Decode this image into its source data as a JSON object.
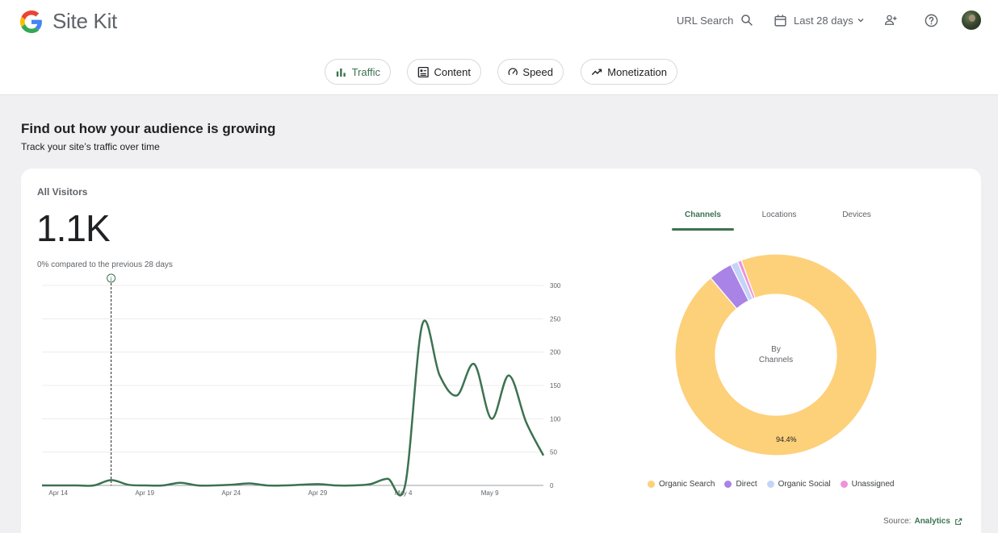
{
  "header": {
    "app_name": "Site Kit",
    "url_search_label": "URL Search",
    "date_range_label": "Last 28 days"
  },
  "nav_chips": [
    {
      "label": "Traffic",
      "active": true,
      "icon": "bar-chart-icon"
    },
    {
      "label": "Content",
      "active": false,
      "icon": "article-icon"
    },
    {
      "label": "Speed",
      "active": false,
      "icon": "speedometer-icon"
    },
    {
      "label": "Monetization",
      "active": false,
      "icon": "trending-up-icon"
    }
  ],
  "section": {
    "title": "Find out how your audience is growing",
    "subtitle": "Track your site’s traffic over time"
  },
  "metric": {
    "label": "All Visitors",
    "value": "1.1K",
    "comparison": "0% compared to the previous 28 days"
  },
  "breakdown_tabs": [
    {
      "label": "Channels",
      "active": true
    },
    {
      "label": "Locations",
      "active": false
    },
    {
      "label": "Devices",
      "active": false
    }
  ],
  "donut": {
    "center_line1": "By",
    "center_line2": "Channels",
    "highlight_label": "94.4%"
  },
  "source": {
    "prefix": "Source:",
    "link_label": "Analytics"
  },
  "colors": {
    "accent": "#3c7251",
    "organic_search": "#fdd07a",
    "direct": "#a983e6",
    "organic_social": "#c4d4f9",
    "unassigned": "#ee92da"
  },
  "chart_data": [
    {
      "type": "line",
      "x_tick_labels": [
        "Apr 14",
        "Apr 19",
        "Apr 24",
        "Apr 29",
        "May 4",
        "May 9"
      ],
      "y_tick_labels": [
        "300",
        "250",
        "200",
        "150",
        "100",
        "50",
        "0"
      ],
      "ylim": [
        0,
        300
      ],
      "annotation_day": 4,
      "series": [
        {
          "values": [
            0,
            0,
            0,
            0,
            8,
            1,
            0,
            0,
            4,
            0,
            0,
            1,
            3,
            0,
            0,
            1,
            2,
            0,
            0,
            2,
            10,
            0,
            242,
            165,
            135,
            182,
            100,
            165,
            95,
            45
          ],
          "color": "#3c7251"
        }
      ],
      "grid": true
    },
    {
      "type": "pie",
      "categories": [
        "Organic Search",
        "Direct",
        "Organic Social",
        "Unassigned"
      ],
      "values": [
        94.4,
        3.8,
        1.2,
        0.6
      ],
      "colors": [
        "#fdd07a",
        "#a983e6",
        "#c4d4f9",
        "#ee92da"
      ],
      "data_label": "94.4%"
    }
  ]
}
